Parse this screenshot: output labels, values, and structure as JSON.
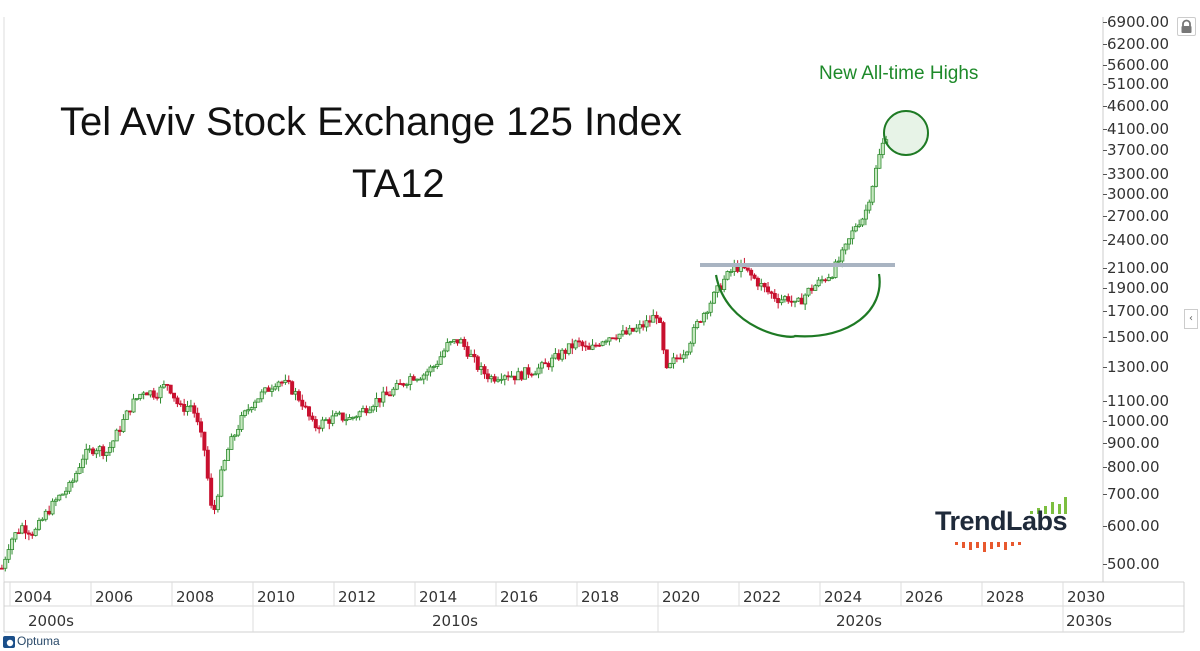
{
  "title": {
    "line1": "Tel Aviv Stock Exchange 125 Index",
    "line2": "TA12"
  },
  "annotation": "New All-time Highs",
  "brand": {
    "name": "TrendLabs",
    "footer": "Optuma"
  },
  "colors": {
    "up": "#2e8b2e",
    "up_fill": "#c6e8c0",
    "down": "#c8102e",
    "annotation": "#1e8a2a",
    "resistance": "#a9b4c2"
  },
  "yaxis": {
    "ticks": [
      "6900.00",
      "6200.00",
      "5600.00",
      "5100.00",
      "4600.00",
      "4100.00",
      "3700.00",
      "3300.00",
      "3000.00",
      "2700.00",
      "2400.00",
      "2100.00",
      "1900.00",
      "1700.00",
      "1500.00",
      "1300.00",
      "1100.00",
      "1000.00",
      "900.00",
      "800.00",
      "700.00",
      "600.00",
      "500.00"
    ]
  },
  "xaxis": {
    "years": [
      "2004",
      "2006",
      "2008",
      "2010",
      "2012",
      "2014",
      "2016",
      "2018",
      "2020",
      "2022",
      "2024",
      "2026",
      "2028",
      "2030"
    ],
    "decades": [
      "2000s",
      "2010s",
      "2020s",
      "2030s"
    ]
  },
  "chart_data": {
    "type": "candlestick",
    "title": "Tel Aviv Stock Exchange 125 Index TA12",
    "xlabel": "",
    "ylabel": "",
    "yscale": "log",
    "ylim": [
      470,
      6900
    ],
    "xlim": [
      "2003-09",
      "2030-12"
    ],
    "grid": false,
    "annotations": [
      {
        "type": "text",
        "text": "New All-time Highs",
        "at": [
          "2025-06",
          5300
        ]
      },
      {
        "type": "circle",
        "center": [
          "2025.7",
          4050
        ],
        "note": "New all-time highs"
      },
      {
        "type": "hline",
        "y": 2150,
        "x_range": [
          "2021.3",
          "2024.9"
        ],
        "note": "resistance"
      },
      {
        "type": "arc",
        "note": "cup/rounding bottom 2021-2024"
      }
    ],
    "x": [
      2003.8,
      2004.0,
      2004.3,
      2004.6,
      2004.9,
      2005.2,
      2005.5,
      2005.8,
      2006.1,
      2006.4,
      2006.7,
      2007.0,
      2007.3,
      2007.6,
      2007.9,
      2008.2,
      2008.5,
      2008.8,
      2009.0,
      2009.2,
      2009.4,
      2009.7,
      2010.0,
      2010.3,
      2010.6,
      2010.9,
      2011.2,
      2011.5,
      2011.8,
      2012.1,
      2012.4,
      2012.7,
      2013.0,
      2013.3,
      2013.6,
      2013.9,
      2014.2,
      2014.5,
      2014.8,
      2015.1,
      2015.3,
      2015.6,
      2015.9,
      2016.2,
      2016.5,
      2016.8,
      2017.1,
      2017.4,
      2017.7,
      2018.0,
      2018.3,
      2018.6,
      2018.9,
      2019.2,
      2019.5,
      2019.8,
      2020.0,
      2020.2,
      2020.4,
      2020.7,
      2021.0,
      2021.3,
      2021.6,
      2021.9,
      2022.1,
      2022.4,
      2022.7,
      2023.0,
      2023.2,
      2023.4,
      2023.7,
      2024.0,
      2024.3,
      2024.6,
      2024.9,
      2025.1,
      2025.3,
      2025.5,
      2025.7
    ],
    "series": [
      {
        "name": "Close",
        "values": [
          490,
          560,
          600,
          580,
          640,
          690,
          730,
          840,
          880,
          860,
          960,
          1080,
          1160,
          1140,
          1200,
          1060,
          1080,
          870,
          620,
          760,
          880,
          1000,
          1100,
          1150,
          1220,
          1180,
          1100,
          970,
          1000,
          1020,
          1010,
          1050,
          1100,
          1130,
          1180,
          1240,
          1250,
          1310,
          1440,
          1480,
          1400,
          1280,
          1230,
          1260,
          1240,
          1270,
          1290,
          1340,
          1400,
          1460,
          1400,
          1480,
          1520,
          1520,
          1560,
          1620,
          1690,
          1260,
          1340,
          1420,
          1620,
          1780,
          1960,
          2110,
          2090,
          1980,
          1870,
          1800,
          1820,
          1740,
          1870,
          1960,
          2050,
          2270,
          2600,
          2700,
          3150,
          3700,
          4150
        ]
      }
    ]
  }
}
